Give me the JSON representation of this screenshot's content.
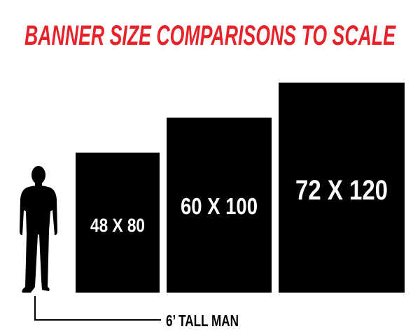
{
  "title": "BANNER SIZE COMPARISONS TO SCALE",
  "colors": {
    "title": "#e8222a",
    "banner": "#000000",
    "label": "#ffffff"
  },
  "banners": [
    {
      "label": "48 X 80",
      "width_in": 48,
      "height_in": 80
    },
    {
      "label": "60 X 100",
      "width_in": 60,
      "height_in": 100
    },
    {
      "label": "72 X 120",
      "width_in": 72,
      "height_in": 120
    }
  ],
  "reference": {
    "label": "6’ TALL MAN",
    "icon": "man-silhouette-icon"
  }
}
